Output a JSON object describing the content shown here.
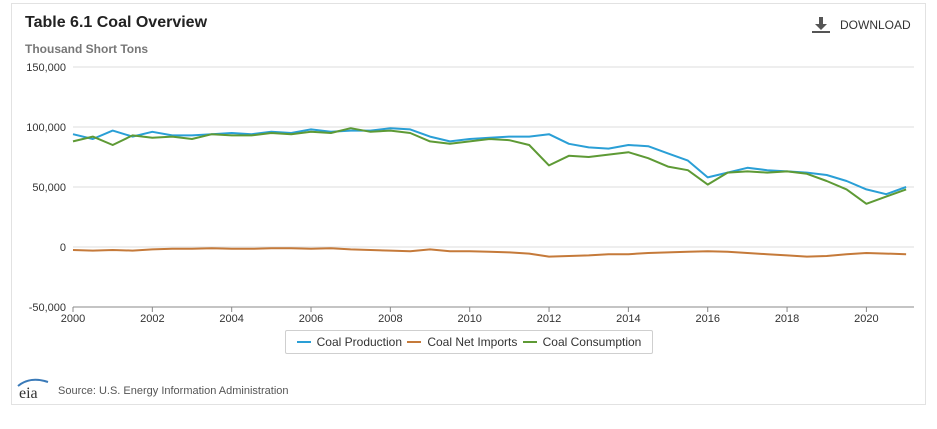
{
  "header": {
    "title": "Table 6.1 Coal Overview",
    "subtitle": "Thousand Short Tons",
    "download_label": "DOWNLOAD",
    "download_icon": "download-icon"
  },
  "footer": {
    "source": "Source: U.S. Energy Information Administration",
    "logo_text": "eia"
  },
  "colors": {
    "production": "#2a9fd6",
    "net_imports": "#c57a3a",
    "consumption": "#5e9a35",
    "grid": "#dddddd"
  },
  "chart_data": {
    "type": "line",
    "title": "Table 6.1 Coal Overview",
    "ylabel": "Thousand Short Tons",
    "ylim": [
      -50000,
      150000
    ],
    "xlim": [
      2000,
      2021.2
    ],
    "y_ticks": [
      "150,000",
      "100,000",
      "50,000",
      "0",
      "-50,000"
    ],
    "y_tick_values": [
      150000,
      100000,
      50000,
      0,
      -50000
    ],
    "x_ticks": [
      "2000",
      "2002",
      "2004",
      "2006",
      "2008",
      "2010",
      "2012",
      "2014",
      "2016",
      "2018",
      "2020"
    ],
    "x_tick_values": [
      2000,
      2002,
      2004,
      2006,
      2008,
      2010,
      2012,
      2014,
      2016,
      2018,
      2020
    ],
    "grid": true,
    "legend_position": "bottom",
    "x": [
      2000.0,
      2000.5,
      2001.0,
      2001.5,
      2002.0,
      2002.5,
      2003.0,
      2003.5,
      2004.0,
      2004.5,
      2005.0,
      2005.5,
      2006.0,
      2006.5,
      2007.0,
      2007.5,
      2008.0,
      2008.5,
      2009.0,
      2009.5,
      2010.0,
      2010.5,
      2011.0,
      2011.5,
      2012.0,
      2012.5,
      2013.0,
      2013.5,
      2014.0,
      2014.5,
      2015.0,
      2015.5,
      2016.0,
      2016.5,
      2017.0,
      2017.5,
      2018.0,
      2018.5,
      2019.0,
      2019.5,
      2020.0,
      2020.5,
      2021.0
    ],
    "series": [
      {
        "name": "Coal Production",
        "values": [
          94000,
          90000,
          97000,
          92000,
          96000,
          93000,
          93000,
          94000,
          95000,
          94000,
          96000,
          95000,
          98000,
          96000,
          97000,
          97000,
          99000,
          98000,
          92000,
          88000,
          90000,
          91000,
          92000,
          92000,
          94000,
          86000,
          83000,
          82000,
          85000,
          84000,
          78000,
          72000,
          58000,
          62000,
          66000,
          64000,
          63000,
          62000,
          60000,
          55000,
          48000,
          44000,
          50000
        ]
      },
      {
        "name": "Coal Net Imports",
        "values": [
          -2500,
          -3000,
          -2500,
          -3000,
          -2000,
          -1500,
          -1500,
          -1000,
          -1500,
          -1500,
          -1000,
          -1000,
          -1500,
          -1000,
          -2000,
          -2500,
          -3000,
          -3500,
          -2000,
          -3500,
          -3500,
          -4000,
          -4500,
          -5500,
          -8000,
          -7500,
          -7000,
          -6000,
          -6000,
          -5000,
          -4500,
          -4000,
          -3500,
          -4000,
          -5000,
          -6000,
          -7000,
          -8000,
          -7500,
          -6000,
          -5000,
          -5500,
          -6000
        ]
      },
      {
        "name": "Coal Consumption",
        "values": [
          88000,
          92000,
          85000,
          93000,
          91000,
          92000,
          90000,
          94000,
          93000,
          93000,
          95000,
          94000,
          96000,
          95000,
          99000,
          96000,
          97000,
          95000,
          88000,
          86000,
          88000,
          90000,
          89000,
          85000,
          68000,
          76000,
          75000,
          77000,
          79000,
          74000,
          67000,
          64000,
          52000,
          62000,
          63000,
          62000,
          63000,
          61000,
          55000,
          48000,
          36000,
          42000,
          48000
        ]
      }
    ]
  }
}
